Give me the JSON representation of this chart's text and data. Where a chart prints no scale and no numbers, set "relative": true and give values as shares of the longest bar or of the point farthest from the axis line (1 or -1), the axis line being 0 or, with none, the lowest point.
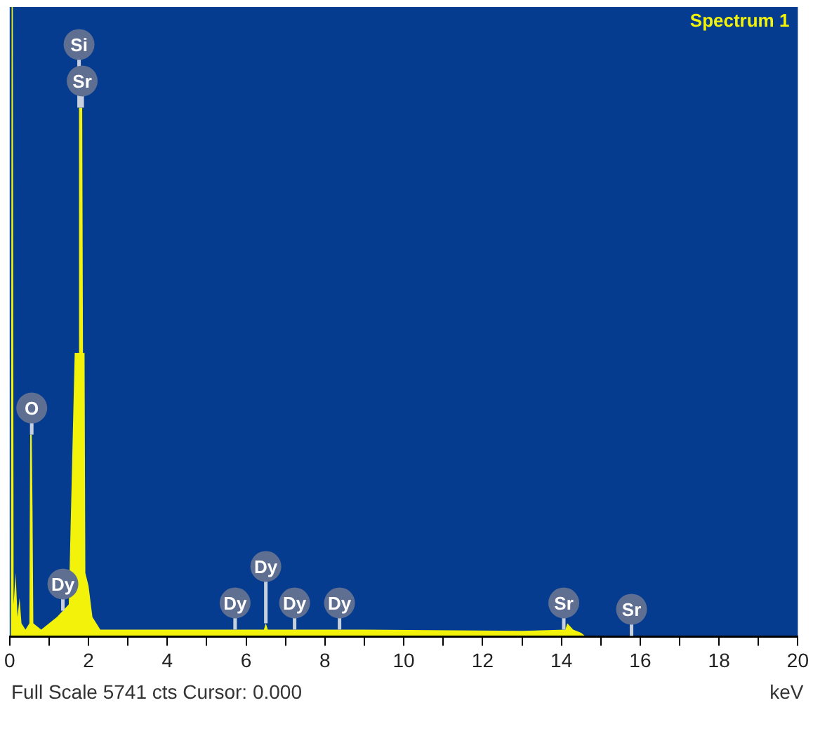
{
  "chart_data": {
    "type": "area",
    "title": "Spectrum 1",
    "xlabel": "keV",
    "relative": true,
    "x": [
      0,
      0.03,
      0.05,
      0.08,
      0.1,
      0.15,
      0.2,
      0.25,
      0.3,
      0.4,
      0.5,
      0.52,
      0.56,
      0.58,
      0.6,
      0.8,
      1.0,
      1.2,
      1.35,
      1.5,
      1.65,
      1.75,
      1.76,
      1.84,
      1.86,
      1.9,
      1.92,
      2.0,
      2.1,
      2.3,
      3,
      5,
      6.45,
      6.5,
      6.55,
      9,
      13,
      14.1,
      14.15,
      14.3,
      14.5,
      14.6,
      20
    ],
    "series": [
      {
        "color": "#f2f20a",
        "values": [
          0,
          0,
          1,
          1,
          0.05,
          0.1,
          0.03,
          0.06,
          0.02,
          0.01,
          0.02,
          0.32,
          0.32,
          0.2,
          0.02,
          0.01,
          0.02,
          0.03,
          0.04,
          0.05,
          0.45,
          0.45,
          0.84,
          0.84,
          0.45,
          0.45,
          0.1,
          0.08,
          0.03,
          0.01,
          0.01,
          0.01,
          0.01,
          0.02,
          0.01,
          0.01,
          0.008,
          0.01,
          0.02,
          0.01,
          0.005,
          0,
          0
        ]
      }
    ],
    "xlim": [
      0,
      20
    ],
    "xticks": [
      0,
      {
        "value": 1,
        "label": null
      },
      2,
      {
        "value": 3,
        "label": null
      },
      4,
      {
        "value": 5,
        "label": null
      },
      6,
      {
        "value": 7,
        "label": null
      },
      8,
      {
        "value": 9,
        "label": null
      },
      10,
      {
        "value": 11,
        "label": null
      },
      12,
      {
        "value": 13,
        "label": null
      },
      14,
      {
        "value": 15,
        "label": null
      },
      16,
      {
        "value": 17,
        "label": null
      },
      18,
      {
        "value": 19,
        "label": null
      },
      20
    ],
    "grid": false,
    "legend": false,
    "marker": "none",
    "annotations": [
      {
        "text": "Sr",
        "x": 1.84,
        "y": 0.84
      },
      {
        "text": "Si",
        "x": 1.76,
        "y": 0.84
      },
      {
        "text": "O",
        "x": 0.56,
        "y": 0.32
      },
      {
        "text": "Dy",
        "x": 1.35,
        "y": 0.04
      },
      {
        "text": "Dy",
        "x": 5.72,
        "y": 0.01
      },
      {
        "text": "Dy",
        "x": 6.5,
        "y": 0.02
      },
      {
        "text": "Dy",
        "x": 7.23,
        "y": 0.01
      },
      {
        "text": "Dy",
        "x": 8.37,
        "y": 0.01
      },
      {
        "text": "Sr",
        "x": 14.06,
        "y": 0.01
      },
      {
        "text": "Sr",
        "x": 15.78,
        "y": 0
      },
      "Full Scale 5741 cts Cursor: 0.000"
    ]
  }
}
